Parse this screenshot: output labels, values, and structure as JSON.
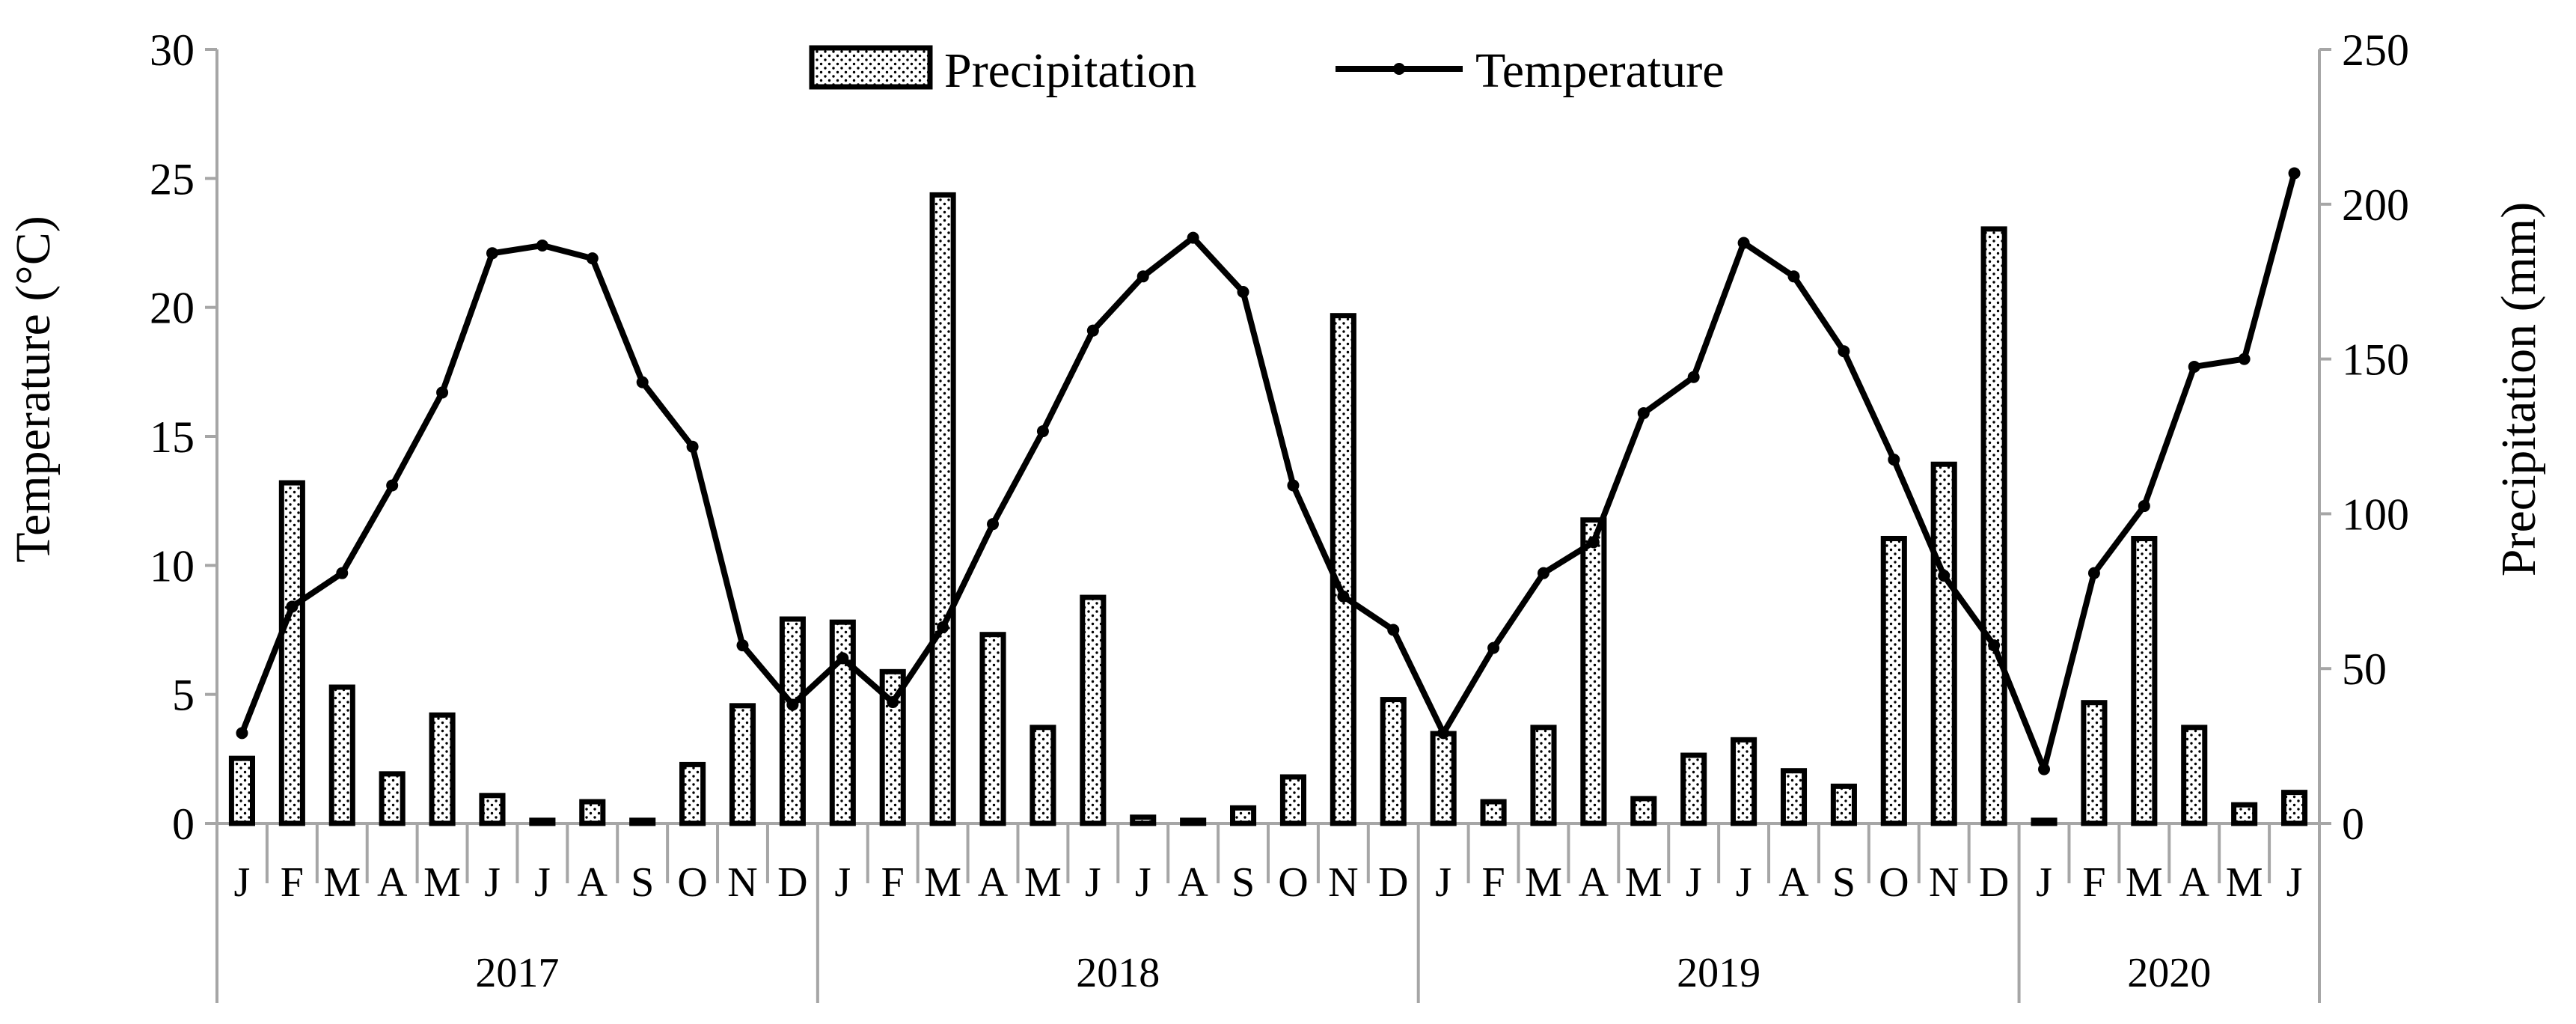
{
  "chart_data": {
    "type": "bar+line",
    "title": "",
    "months": [
      "J",
      "F",
      "M",
      "A",
      "M",
      "J",
      "J",
      "A",
      "S",
      "O",
      "N",
      "D",
      "J",
      "F",
      "M",
      "A",
      "M",
      "J",
      "J",
      "A",
      "S",
      "O",
      "N",
      "D",
      "J",
      "F",
      "M",
      "A",
      "M",
      "J",
      "J",
      "A",
      "S",
      "O",
      "N",
      "D",
      "J",
      "F",
      "M",
      "A",
      "M",
      "J"
    ],
    "years": [
      {
        "label": "2017",
        "start": 0,
        "count": 12
      },
      {
        "label": "2018",
        "start": 12,
        "count": 12
      },
      {
        "label": "2019",
        "start": 24,
        "count": 12
      },
      {
        "label": "2020",
        "start": 36,
        "count": 6
      }
    ],
    "series": [
      {
        "name": "Precipitation",
        "kind": "bar",
        "axis": "right",
        "unit": "mm",
        "values": [
          21,
          110,
          44,
          16,
          35,
          9,
          1,
          7,
          1,
          19,
          38,
          66,
          65,
          49,
          203,
          61,
          31,
          73,
          2,
          1,
          5,
          15,
          164,
          40,
          29,
          7,
          31,
          98,
          8,
          22,
          27,
          17,
          12,
          92,
          116,
          192,
          1,
          39,
          92,
          31,
          6,
          10
        ]
      },
      {
        "name": "Temperature",
        "kind": "line",
        "axis": "left",
        "unit": "°C",
        "values": [
          3.5,
          8.4,
          9.7,
          13.1,
          16.7,
          22.1,
          22.4,
          21.9,
          17.1,
          14.6,
          6.9,
          4.6,
          6.4,
          4.7,
          7.6,
          11.6,
          15.2,
          19.1,
          21.2,
          22.7,
          20.6,
          13.1,
          8.8,
          7.5,
          3.5,
          6.8,
          9.7,
          10.9,
          15.9,
          17.3,
          22.5,
          21.2,
          18.3,
          14.1,
          9.6,
          6.9,
          2.1,
          9.7,
          12.3,
          17.7,
          18.0,
          25.2
        ]
      }
    ],
    "y_left": {
      "label": "Temperature (°C)",
      "min": 0,
      "max": 30,
      "ticks": [
        0,
        5,
        10,
        15,
        20,
        25,
        30
      ]
    },
    "y_right": {
      "label": "Precipitation (mm)",
      "min": 0,
      "max": 250,
      "ticks": [
        0,
        50,
        100,
        150,
        200,
        250
      ]
    },
    "legend": {
      "position": "top-center",
      "entries": [
        "Precipitation",
        "Temperature"
      ]
    },
    "grid": false,
    "colors": {
      "line": "#000000",
      "bar_fill": "#ffffff",
      "bar_edge": "#000000",
      "axis": "#a6a6a6",
      "dots": "#000000"
    }
  }
}
